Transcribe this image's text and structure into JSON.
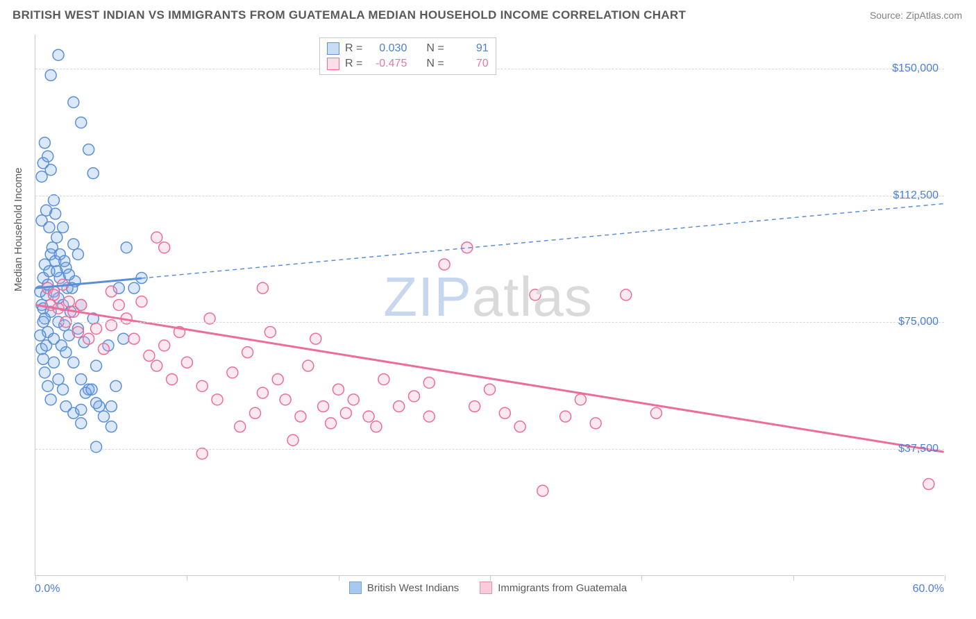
{
  "title": "BRITISH WEST INDIAN VS IMMIGRANTS FROM GUATEMALA MEDIAN HOUSEHOLD INCOME CORRELATION CHART",
  "source": "Source: ZipAtlas.com",
  "chart": {
    "type": "scatter",
    "ylabel": "Median Household Income",
    "xlim": [
      0,
      60
    ],
    "ylim": [
      0,
      160000
    ],
    "x_min_label": "0.0%",
    "x_max_label": "60.0%",
    "x_ticks": [
      0,
      10,
      20,
      30,
      40,
      50,
      60
    ],
    "y_ticks": [
      37500,
      75000,
      112500,
      150000
    ],
    "y_tick_labels": [
      "$37,500",
      "$75,000",
      "$112,500",
      "$150,000"
    ],
    "grid_color": "#d8d8d8",
    "background_color": "#ffffff",
    "axis_color": "#cccccc",
    "label_color": "#5a5a5a",
    "tick_label_color": "#4a7fd8",
    "marker_radius": 8,
    "marker_stroke_width": 1.5,
    "marker_fill_opacity": 0.25,
    "series": [
      {
        "name": "British West Indians",
        "color": "#6fa3e8",
        "stroke": "#5a8fd8",
        "R": "0.030",
        "N": "91",
        "trend": {
          "x1": 0,
          "y1": 85000,
          "x2": 60,
          "y2": 110000,
          "solid_to_x": 7,
          "line_width": 3,
          "dash": "6,5"
        },
        "points": [
          [
            0.3,
            84000
          ],
          [
            0.4,
            80000
          ],
          [
            0.5,
            88000
          ],
          [
            0.5,
            79000
          ],
          [
            0.6,
            92000
          ],
          [
            0.6,
            76000
          ],
          [
            0.7,
            83000
          ],
          [
            0.8,
            86000
          ],
          [
            0.8,
            72000
          ],
          [
            0.9,
            90000
          ],
          [
            1.0,
            95000
          ],
          [
            1.0,
            78000
          ],
          [
            1.1,
            97000
          ],
          [
            1.2,
            84000
          ],
          [
            1.2,
            70000
          ],
          [
            1.3,
            93000
          ],
          [
            1.4,
            100000
          ],
          [
            1.5,
            82000
          ],
          [
            1.5,
            75000
          ],
          [
            1.6,
            88000
          ],
          [
            1.7,
            68000
          ],
          [
            1.8,
            103000
          ],
          [
            1.8,
            80000
          ],
          [
            1.9,
            74000
          ],
          [
            2.0,
            91000
          ],
          [
            2.0,
            66000
          ],
          [
            2.1,
            85000
          ],
          [
            2.2,
            71000
          ],
          [
            2.3,
            78000
          ],
          [
            2.5,
            98000
          ],
          [
            2.5,
            63000
          ],
          [
            2.6,
            87000
          ],
          [
            2.8,
            73000
          ],
          [
            3.0,
            80000
          ],
          [
            3.0,
            58000
          ],
          [
            3.2,
            69000
          ],
          [
            3.5,
            55000
          ],
          [
            3.8,
            76000
          ],
          [
            4.0,
            62000
          ],
          [
            4.2,
            50000
          ],
          [
            4.5,
            47000
          ],
          [
            4.8,
            68000
          ],
          [
            5.0,
            44000
          ],
          [
            5.5,
            85000
          ],
          [
            6.0,
            97000
          ],
          [
            6.5,
            85000
          ],
          [
            7.0,
            88000
          ],
          [
            0.5,
            122000
          ],
          [
            0.6,
            128000
          ],
          [
            0.8,
            124000
          ],
          [
            1.0,
            120000
          ],
          [
            1.0,
            148000
          ],
          [
            1.5,
            154000
          ],
          [
            1.2,
            111000
          ],
          [
            0.4,
            118000
          ],
          [
            2.5,
            140000
          ],
          [
            3.0,
            134000
          ],
          [
            3.5,
            126000
          ],
          [
            3.8,
            119000
          ],
          [
            0.3,
            71000
          ],
          [
            0.4,
            67000
          ],
          [
            0.5,
            64000
          ],
          [
            0.6,
            60000
          ],
          [
            0.8,
            56000
          ],
          [
            1.0,
            52000
          ],
          [
            0.5,
            75000
          ],
          [
            0.7,
            68000
          ],
          [
            1.2,
            63000
          ],
          [
            1.5,
            58000
          ],
          [
            1.8,
            55000
          ],
          [
            2.0,
            50000
          ],
          [
            2.5,
            48000
          ],
          [
            3.0,
            45000
          ],
          [
            3.0,
            49000
          ],
          [
            3.3,
            54000
          ],
          [
            3.7,
            55000
          ],
          [
            4.0,
            51000
          ],
          [
            5.0,
            50000
          ],
          [
            5.3,
            56000
          ],
          [
            5.8,
            70000
          ],
          [
            4.0,
            38000
          ],
          [
            0.9,
            103000
          ],
          [
            1.3,
            107000
          ],
          [
            1.6,
            95000
          ],
          [
            1.4,
            90000
          ],
          [
            0.7,
            108000
          ],
          [
            0.4,
            105000
          ],
          [
            2.8,
            95000
          ],
          [
            2.2,
            89000
          ],
          [
            1.9,
            93000
          ],
          [
            2.4,
            85000
          ]
        ]
      },
      {
        "name": "Immigrants from Guatemala",
        "color": "#f4a8c2",
        "stroke": "#ed6d9a",
        "R": "-0.475",
        "N": "70",
        "trend": {
          "x1": 0,
          "y1": 80000,
          "x2": 60,
          "y2": 36500,
          "solid_to_x": 60,
          "line_width": 3
        },
        "points": [
          [
            0.8,
            85000
          ],
          [
            1.0,
            80000
          ],
          [
            1.2,
            83000
          ],
          [
            1.5,
            79000
          ],
          [
            1.8,
            86000
          ],
          [
            2.0,
            75000
          ],
          [
            2.2,
            81000
          ],
          [
            2.5,
            78000
          ],
          [
            2.8,
            72000
          ],
          [
            3.0,
            80000
          ],
          [
            3.5,
            70000
          ],
          [
            4.0,
            73000
          ],
          [
            4.5,
            67000
          ],
          [
            5.0,
            74000
          ],
          [
            5.5,
            80000
          ],
          [
            6.0,
            76000
          ],
          [
            6.5,
            70000
          ],
          [
            7.0,
            81000
          ],
          [
            7.5,
            65000
          ],
          [
            8.0,
            62000
          ],
          [
            8.0,
            100000
          ],
          [
            8.5,
            68000
          ],
          [
            9.0,
            58000
          ],
          [
            9.5,
            72000
          ],
          [
            10.0,
            63000
          ],
          [
            11.0,
            56000
          ],
          [
            11.5,
            76000
          ],
          [
            12.0,
            52000
          ],
          [
            13.0,
            60000
          ],
          [
            13.5,
            44000
          ],
          [
            14.0,
            66000
          ],
          [
            14.5,
            48000
          ],
          [
            15.0,
            85000
          ],
          [
            15.0,
            54000
          ],
          [
            16.0,
            58000
          ],
          [
            16.5,
            52000
          ],
          [
            17.0,
            40000
          ],
          [
            17.5,
            47000
          ],
          [
            18.0,
            62000
          ],
          [
            19.0,
            50000
          ],
          [
            19.5,
            45000
          ],
          [
            20.0,
            55000
          ],
          [
            20.5,
            48000
          ],
          [
            21.0,
            52000
          ],
          [
            22.0,
            47000
          ],
          [
            22.5,
            44000
          ],
          [
            23.0,
            58000
          ],
          [
            24.0,
            50000
          ],
          [
            25.0,
            53000
          ],
          [
            26.0,
            47000
          ],
          [
            26.0,
            57000
          ],
          [
            27.0,
            92000
          ],
          [
            28.5,
            97000
          ],
          [
            29.0,
            50000
          ],
          [
            30.0,
            55000
          ],
          [
            31.0,
            48000
          ],
          [
            32.0,
            44000
          ],
          [
            33.0,
            83000
          ],
          [
            33.5,
            25000
          ],
          [
            35.0,
            47000
          ],
          [
            36.0,
            52000
          ],
          [
            37.0,
            45000
          ],
          [
            39.0,
            83000
          ],
          [
            41.0,
            48000
          ],
          [
            15.5,
            72000
          ],
          [
            18.5,
            70000
          ],
          [
            11.0,
            36000
          ],
          [
            8.5,
            97000
          ],
          [
            59.0,
            27000
          ],
          [
            5.0,
            84000
          ]
        ]
      }
    ],
    "watermark": {
      "part1": "ZIP",
      "part2": "atlas",
      "color1": "#c7d7ef",
      "color2": "#dadada",
      "fontsize": 80
    },
    "stats_box": {
      "R_label": "R =",
      "N_label": "N ="
    },
    "bottom_legend": [
      {
        "label": "British West Indians",
        "color": "#a8c8f0",
        "border": "#6fa3e8"
      },
      {
        "label": "Immigrants from Guatemala",
        "color": "#f8cdd9",
        "border": "#ed8db0"
      }
    ]
  }
}
